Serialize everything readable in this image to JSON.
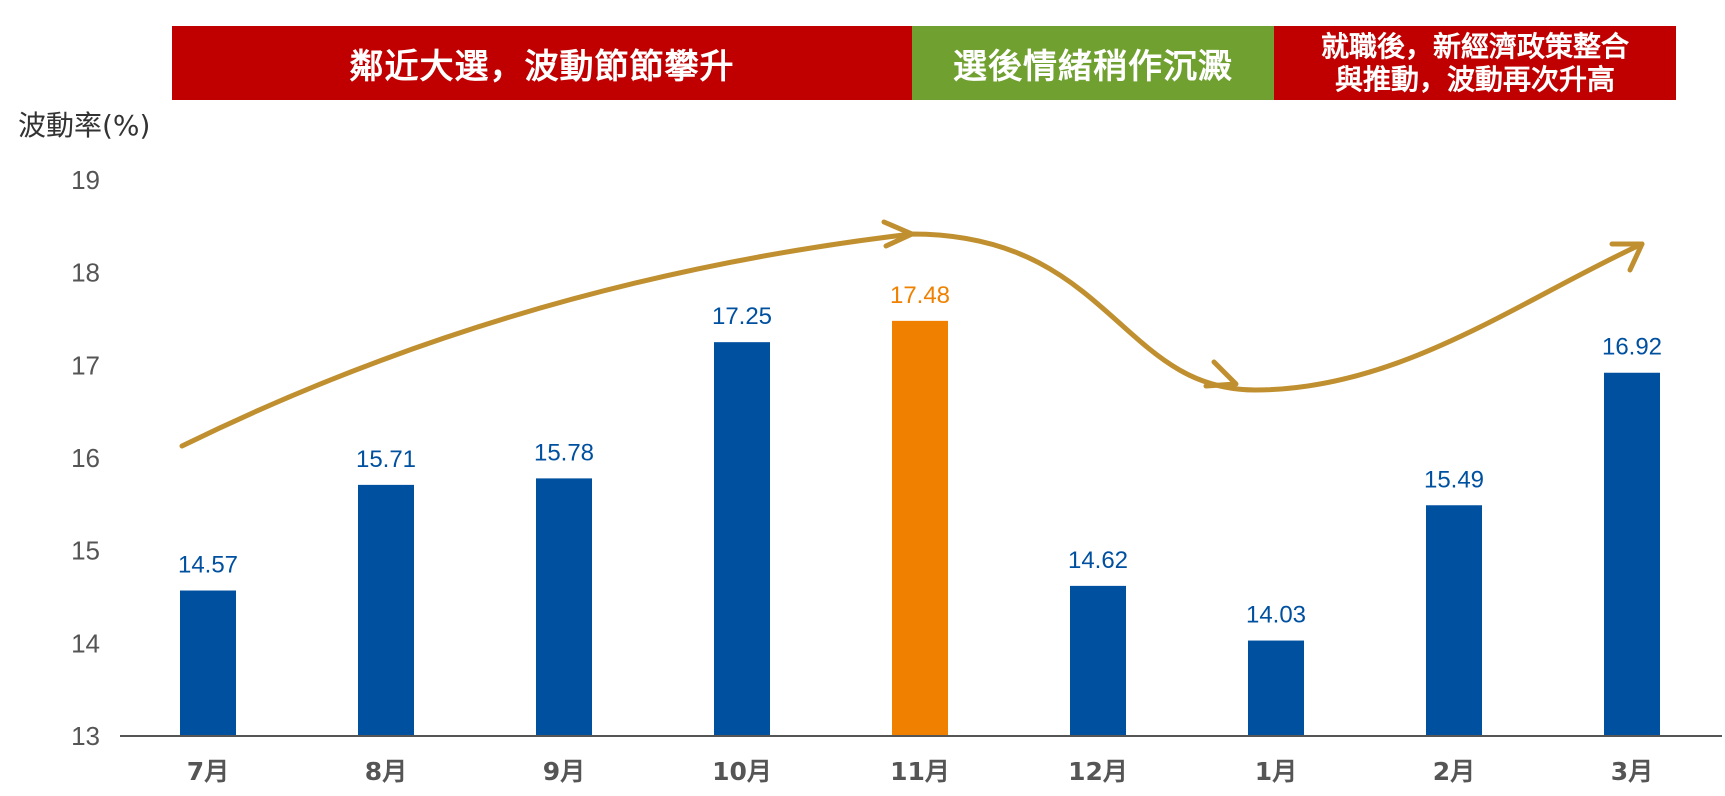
{
  "banners": [
    {
      "text": "鄰近大選，波動節節攀升",
      "color": "#C00000"
    },
    {
      "text": "選後情緒稍作沉澱",
      "color": "#70A030"
    },
    {
      "line1": "就職後，新經濟政策整合",
      "line2": "與推動，波動再次升高",
      "color": "#C00000"
    }
  ],
  "chart_data": {
    "type": "bar",
    "categories": [
      "7月",
      "8月",
      "9月",
      "10月",
      "11月",
      "12月",
      "1月",
      "2月",
      "3月"
    ],
    "values": [
      14.57,
      15.71,
      15.78,
      17.25,
      17.48,
      14.62,
      14.03,
      15.49,
      16.92
    ],
    "data_labels": [
      "14.57",
      "15.71",
      "15.78",
      "17.25",
      "17.48",
      "14.62",
      "14.03",
      "15.49",
      "16.92"
    ],
    "ylabel": "波動率(%)",
    "ylim": [
      13,
      19
    ],
    "yticks": [
      13,
      14,
      15,
      16,
      17,
      18,
      19
    ],
    "grid": false,
    "highlight_index": 4,
    "colors": {
      "bar": "#0050A0",
      "highlight": "#F08000",
      "trend_arrow": "#C09030",
      "axis": "#555555",
      "tick_text": "#555555",
      "category_text": "#555555"
    }
  }
}
